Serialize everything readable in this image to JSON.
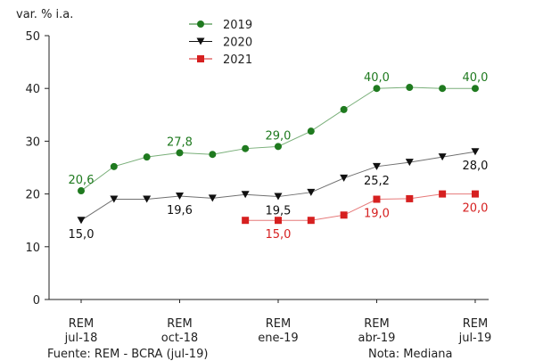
{
  "chart_data": {
    "type": "line",
    "ylabel": "var. % i.a.",
    "ylim": [
      0,
      50
    ],
    "y_ticks": [
      0,
      10,
      20,
      30,
      40,
      50
    ],
    "grid": false,
    "legend_placement": "top-center",
    "x_count": 13,
    "x_ticks": [
      {
        "index": 0,
        "line1": "REM",
        "line2": "jul-18"
      },
      {
        "index": 3,
        "line1": "REM",
        "line2": "oct-18"
      },
      {
        "index": 6,
        "line1": "REM",
        "line2": "ene-19"
      },
      {
        "index": 9,
        "line1": "REM",
        "line2": "abr-19"
      },
      {
        "index": 12,
        "line1": "REM",
        "line2": "jul-19"
      }
    ],
    "series": [
      {
        "name": "2019",
        "color": "#1f7a1f",
        "marker": "circle",
        "values": [
          20.6,
          25.2,
          27.0,
          27.8,
          27.5,
          28.6,
          29.0,
          31.9,
          36.0,
          40.0,
          40.2,
          40.0,
          40.0
        ],
        "labels": [
          {
            "index": 0,
            "text": "20,6",
            "pos": "above"
          },
          {
            "index": 3,
            "text": "27,8",
            "pos": "above"
          },
          {
            "index": 6,
            "text": "29,0",
            "pos": "above"
          },
          {
            "index": 9,
            "text": "40,0",
            "pos": "above"
          },
          {
            "index": 12,
            "text": "40,0",
            "pos": "above"
          }
        ]
      },
      {
        "name": "2020",
        "color": "#111111",
        "marker": "triangle-down",
        "values": [
          15.0,
          19.0,
          19.0,
          19.6,
          19.2,
          19.9,
          19.5,
          20.3,
          23.0,
          25.2,
          26.0,
          27.0,
          28.0
        ],
        "labels": [
          {
            "index": 0,
            "text": "15,0",
            "pos": "below"
          },
          {
            "index": 3,
            "text": "19,6",
            "pos": "below"
          },
          {
            "index": 6,
            "text": "19,5",
            "pos": "below"
          },
          {
            "index": 9,
            "text": "25,2",
            "pos": "below"
          },
          {
            "index": 12,
            "text": "28,0",
            "pos": "below"
          }
        ]
      },
      {
        "name": "2021",
        "color": "#d62020",
        "marker": "square",
        "values": [
          null,
          null,
          null,
          null,
          null,
          15.0,
          15.0,
          15.0,
          16.0,
          19.0,
          19.1,
          20.0,
          20.0
        ],
        "labels": [
          {
            "index": 6,
            "text": "15,0",
            "pos": "below"
          },
          {
            "index": 9,
            "text": "19,0",
            "pos": "below"
          },
          {
            "index": 12,
            "text": "20,0",
            "pos": "below"
          }
        ]
      }
    ]
  },
  "footer": {
    "source": "Fuente: REM - BCRA (jul-19)",
    "note": "Nota: Mediana"
  }
}
